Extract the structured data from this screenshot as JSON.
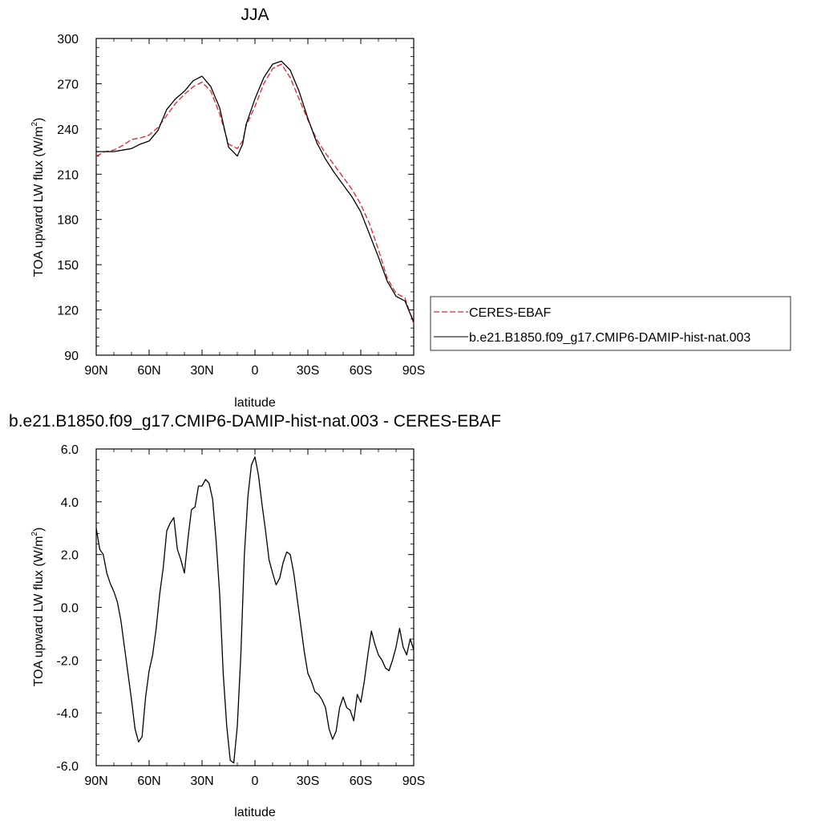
{
  "chart_data": [
    {
      "type": "line",
      "title": "JJA",
      "xlabel": "latitude",
      "ylabel": "TOA upward LW flux (W/m",
      "ylabel_sup": "2",
      "ylabel_close": ")",
      "xlim": [
        90,
        -90
      ],
      "ylim": [
        90,
        300
      ],
      "x_ticks": [
        90,
        60,
        30,
        0,
        -30,
        -60,
        -90
      ],
      "x_tick_labels": [
        "90N",
        "60N",
        "30N",
        "0",
        "30S",
        "60S",
        "90S"
      ],
      "y_ticks": [
        90,
        120,
        150,
        180,
        210,
        240,
        270,
        300
      ],
      "y_tick_labels": [
        "90",
        "120",
        "150",
        "180",
        "210",
        "240",
        "270",
        "300"
      ],
      "grid": false,
      "legend_position": "right",
      "series": [
        {
          "name": "CERES-EBAF",
          "color": "#e8202a",
          "dash": "dashed",
          "x": [
            90,
            85,
            80,
            75,
            70,
            65,
            60,
            55,
            50,
            45,
            40,
            35,
            30,
            25,
            20,
            15,
            10,
            7,
            5,
            0,
            -5,
            -10,
            -15,
            -20,
            -25,
            -30,
            -35,
            -40,
            -45,
            -50,
            -55,
            -60,
            -65,
            -70,
            -75,
            -80,
            -85,
            -90
          ],
          "y": [
            222,
            225,
            226,
            229,
            233,
            234,
            236,
            241,
            249,
            257,
            263,
            268,
            271,
            265,
            250,
            230,
            227,
            232,
            242,
            255,
            270,
            280,
            283,
            274,
            260,
            246,
            233,
            224,
            216,
            208,
            200,
            190,
            177,
            160,
            141,
            131,
            128,
            111
          ]
        },
        {
          "name": "b.e21.B1850.f09_g17.CMIP6-DAMIP-hist-nat.003",
          "color": "#000000",
          "dash": "solid",
          "x": [
            90,
            85,
            80,
            75,
            70,
            65,
            60,
            55,
            50,
            45,
            40,
            35,
            30,
            25,
            20,
            15,
            10,
            7,
            5,
            0,
            -5,
            -10,
            -15,
            -20,
            -25,
            -30,
            -35,
            -40,
            -45,
            -50,
            -55,
            -60,
            -65,
            -70,
            -75,
            -80,
            -85,
            -90
          ],
          "y": [
            225,
            225,
            225,
            226,
            227,
            230,
            232,
            239,
            253,
            260,
            265,
            272,
            275,
            268,
            254,
            228,
            222,
            230,
            243,
            260,
            274,
            283,
            285,
            279,
            265,
            247,
            231,
            220,
            211,
            203,
            195,
            185,
            170,
            155,
            139,
            129,
            126,
            112
          ]
        }
      ]
    },
    {
      "type": "line",
      "title": "b.e21.B1850.f09_g17.CMIP6-DAMIP-hist-nat.003 - CERES-EBAF",
      "xlabel": "latitude",
      "ylabel": "TOA upward LW flux (W/m",
      "ylabel_sup": "2",
      "ylabel_close": ")",
      "xlim": [
        90,
        -90
      ],
      "ylim": [
        -6,
        6
      ],
      "x_ticks": [
        90,
        60,
        30,
        0,
        -30,
        -60,
        -90
      ],
      "x_tick_labels": [
        "90N",
        "60N",
        "30N",
        "0",
        "30S",
        "60S",
        "90S"
      ],
      "y_ticks": [
        -6,
        -4,
        -2,
        0,
        2,
        4,
        6
      ],
      "y_tick_labels": [
        "-6.0",
        "-4.0",
        "-2.0",
        "0.0",
        "2.0",
        "4.0",
        "6.0"
      ],
      "grid": false,
      "series": [
        {
          "color": "#000000",
          "dash": "solid",
          "x": [
            90,
            88,
            86,
            84,
            82,
            80,
            78,
            76,
            74,
            72,
            70,
            68,
            66,
            64,
            62,
            60,
            58,
            56,
            54,
            52,
            50,
            48,
            46,
            44,
            42,
            40,
            38,
            36,
            34,
            32,
            30,
            28,
            26,
            24,
            22,
            20,
            18,
            16,
            14,
            12,
            10,
            8,
            6,
            4,
            2,
            0,
            -2,
            -4,
            -6,
            -8,
            -10,
            -12,
            -14,
            -16,
            -18,
            -20,
            -22,
            -24,
            -26,
            -28,
            -30,
            -32,
            -34,
            -36,
            -38,
            -40,
            -42,
            -44,
            -46,
            -48,
            -50,
            -52,
            -54,
            -56,
            -58,
            -60,
            -62,
            -64,
            -66,
            -68,
            -70,
            -72,
            -74,
            -76,
            -78,
            -80,
            -82,
            -84,
            -86,
            -88,
            -90
          ],
          "y": [
            3.0,
            2.2,
            2.0,
            1.3,
            0.9,
            0.6,
            0.2,
            -0.5,
            -1.5,
            -2.5,
            -3.5,
            -4.6,
            -5.1,
            -4.9,
            -3.4,
            -2.4,
            -1.8,
            -0.8,
            0.5,
            1.5,
            2.9,
            3.2,
            3.4,
            2.2,
            1.8,
            1.3,
            2.6,
            3.7,
            3.8,
            4.6,
            4.6,
            4.85,
            4.7,
            4.1,
            2.5,
            0.5,
            -2.5,
            -4.5,
            -5.8,
            -5.9,
            -4.5,
            -1.8,
            2.0,
            4.2,
            5.4,
            5.7,
            5.0,
            3.9,
            2.9,
            1.8,
            1.3,
            0.85,
            1.1,
            1.7,
            2.1,
            2.0,
            1.3,
            0.3,
            -0.7,
            -1.7,
            -2.5,
            -2.8,
            -3.2,
            -3.3,
            -3.5,
            -3.8,
            -4.6,
            -5.0,
            -4.7,
            -3.8,
            -3.4,
            -3.8,
            -3.9,
            -4.3,
            -3.3,
            -3.6,
            -2.8,
            -1.8,
            -0.9,
            -1.4,
            -1.8,
            -2.0,
            -2.3,
            -2.4,
            -2.0,
            -1.5,
            -0.8,
            -1.5,
            -1.8,
            -1.2,
            -1.6
          ]
        }
      ]
    }
  ]
}
